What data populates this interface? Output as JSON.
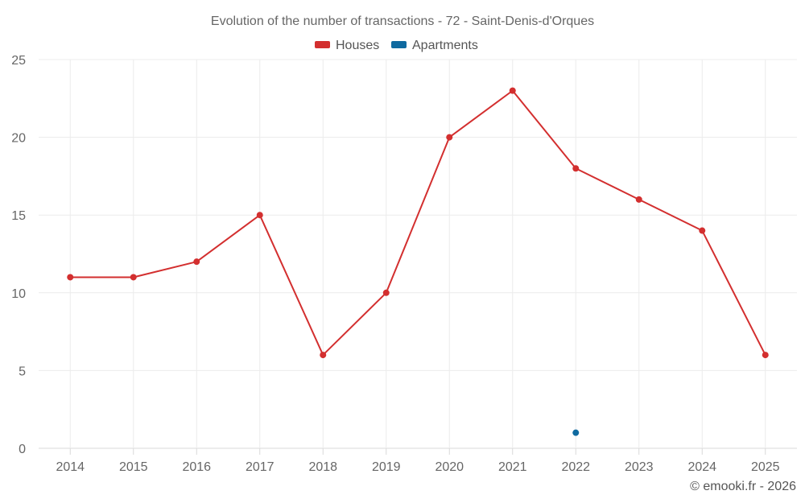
{
  "chart_data": {
    "type": "line",
    "title": "Evolution of the number of transactions - 72 - Saint-Denis-d'Orques",
    "categories": [
      "2014",
      "2015",
      "2016",
      "2017",
      "2018",
      "2019",
      "2020",
      "2021",
      "2022",
      "2023",
      "2024",
      "2025"
    ],
    "series": [
      {
        "name": "Houses",
        "color": "#d32f2f",
        "values": [
          11,
          11,
          12,
          15,
          6,
          10,
          20,
          23,
          18,
          16,
          14,
          6
        ]
      },
      {
        "name": "Apartments",
        "color": "#0f6aa0",
        "values": [
          null,
          null,
          null,
          null,
          null,
          null,
          null,
          null,
          1,
          null,
          null,
          null
        ]
      }
    ],
    "ylim": [
      0,
      25
    ],
    "yticks": [
      0,
      5,
      10,
      15,
      20,
      25
    ],
    "xlabel": "",
    "ylabel": "",
    "grid": true,
    "legend_position": "top-center"
  },
  "credit": "© emooki.fr - 2026"
}
